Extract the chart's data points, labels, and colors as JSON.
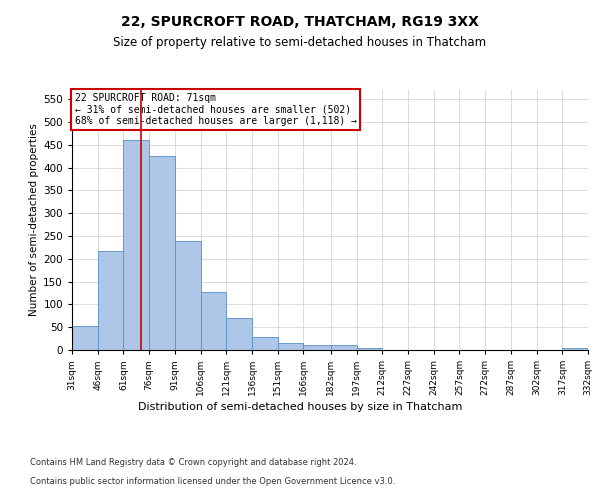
{
  "title1": "22, SPURCROFT ROAD, THATCHAM, RG19 3XX",
  "title2": "Size of property relative to semi-detached houses in Thatcham",
  "xlabel": "Distribution of semi-detached houses by size in Thatcham",
  "ylabel": "Number of semi-detached properties",
  "footer1": "Contains HM Land Registry data © Crown copyright and database right 2024.",
  "footer2": "Contains public sector information licensed under the Open Government Licence v3.0.",
  "property_label": "22 SPURCROFT ROAD: 71sqm",
  "smaller_label": "← 31% of semi-detached houses are smaller (502)",
  "larger_label": "68% of semi-detached houses are larger (1,118) →",
  "property_size": 71,
  "bar_color": "#aec6e8",
  "bar_edge_color": "#5a8fc2",
  "vline_color": "#cc0000",
  "annotation_box_color": "#cc0000",
  "bar_values": [
    52,
    218,
    460,
    425,
    240,
    128,
    70,
    28,
    16,
    10,
    10,
    5,
    0,
    0,
    0,
    0,
    0,
    0,
    0,
    5
  ],
  "bin_edges": [
    31,
    46,
    61,
    76,
    91,
    106,
    121,
    136,
    151,
    166,
    182,
    197,
    212,
    227,
    242,
    257,
    272,
    287,
    302,
    317,
    332
  ],
  "bin_labels": [
    "31sqm",
    "46sqm",
    "61sqm",
    "76sqm",
    "91sqm",
    "106sqm",
    "121sqm",
    "136sqm",
    "151sqm",
    "166sqm",
    "182sqm",
    "197sqm",
    "212sqm",
    "227sqm",
    "242sqm",
    "257sqm",
    "272sqm",
    "287sqm",
    "302sqm",
    "317sqm",
    "332sqm"
  ],
  "ylim": [
    0,
    570
  ],
  "yticks": [
    0,
    50,
    100,
    150,
    200,
    250,
    300,
    350,
    400,
    450,
    500,
    550
  ],
  "background_color": "#ffffff",
  "grid_color": "#cccccc"
}
